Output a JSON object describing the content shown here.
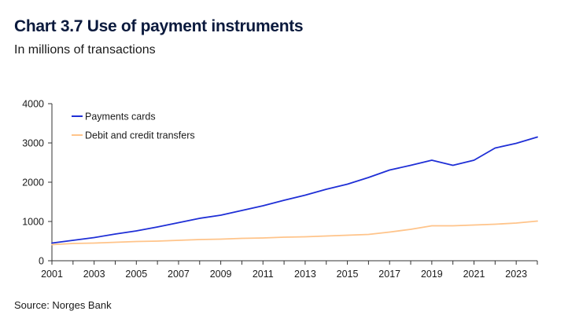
{
  "header": {
    "title": "Chart 3.7 Use of payment instruments",
    "subtitle": "In millions of transactions"
  },
  "footer": {
    "source": "Source: Norges Bank"
  },
  "chart_data": {
    "type": "line",
    "title": "Chart 3.7 Use of payment instruments",
    "subtitle": "In millions of transactions",
    "xlabel": "",
    "ylabel": "",
    "xlim": [
      2001,
      2024
    ],
    "ylim": [
      0,
      4000
    ],
    "x_ticks": [
      "2001",
      "2003",
      "2005",
      "2007",
      "2009",
      "2011",
      "2013",
      "2015",
      "2017",
      "2019",
      "2021",
      "2023"
    ],
    "y_ticks": [
      "0",
      "1000",
      "2000",
      "3000",
      "4000"
    ],
    "grid": false,
    "legend_position": "top-left",
    "x": [
      2001,
      2002,
      2003,
      2004,
      2005,
      2006,
      2007,
      2008,
      2009,
      2010,
      2011,
      2012,
      2013,
      2014,
      2015,
      2016,
      2017,
      2018,
      2019,
      2020,
      2021,
      2022,
      2023,
      2024
    ],
    "series": [
      {
        "name": "Payments cards",
        "color": "#1f2fd6",
        "values": [
          450,
          520,
          590,
          680,
          760,
          860,
          970,
          1080,
          1160,
          1280,
          1400,
          1540,
          1670,
          1820,
          1950,
          2120,
          2310,
          2430,
          2560,
          2430,
          2560,
          2870,
          2990,
          3150
        ]
      },
      {
        "name": "Debit and credit transfers",
        "color": "#ffc48a",
        "values": [
          410,
          440,
          450,
          470,
          490,
          500,
          520,
          540,
          550,
          570,
          580,
          600,
          610,
          630,
          650,
          670,
          730,
          800,
          890,
          890,
          910,
          930,
          960,
          1010
        ]
      }
    ]
  }
}
